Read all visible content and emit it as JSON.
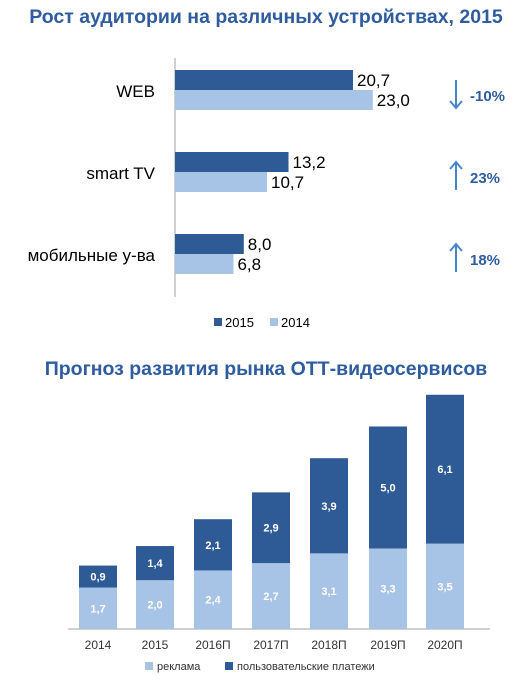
{
  "chart_data": [
    {
      "type": "bar",
      "orientation": "horizontal",
      "title": "Рост аудитории на различных устройствах, 2015",
      "categories": [
        "WEB",
        "smart TV",
        "мобильные у-ва"
      ],
      "series": [
        {
          "name": "2015",
          "values": [
            20.7,
            13.2,
            8.0
          ],
          "labels": [
            "20,7",
            "13,2",
            "8,0"
          ]
        },
        {
          "name": "2014",
          "values": [
            23.0,
            10.7,
            6.8
          ],
          "labels": [
            "23,0",
            "10,7",
            "6,8"
          ]
        }
      ],
      "changes": [
        {
          "text": "-10%",
          "direction": "down"
        },
        {
          "text": "23%",
          "direction": "up"
        },
        {
          "text": "18%",
          "direction": "up"
        }
      ],
      "xlim": [
        0,
        30
      ],
      "grid": false,
      "legend": "bottom"
    },
    {
      "type": "bar",
      "stacked": true,
      "title": "Прогноз развития рынка ОТТ-видеосервисов",
      "categories": [
        "2014",
        "2015",
        "2016П",
        "2017П",
        "2018П",
        "2019П",
        "2020П"
      ],
      "series": [
        {
          "name": "реклама",
          "values": [
            1.7,
            2.0,
            2.4,
            2.7,
            3.1,
            3.3,
            3.5
          ],
          "labels": [
            "1,7",
            "2,0",
            "2,4",
            "2,7",
            "3,1",
            "3,3",
            "3,5"
          ]
        },
        {
          "name": "пользовательские платежи",
          "values": [
            0.9,
            1.4,
            2.1,
            2.9,
            3.9,
            5.0,
            6.1
          ],
          "labels": [
            "0,9",
            "1,4",
            "2,1",
            "2,9",
            "3,9",
            "5,0",
            "6,1"
          ]
        }
      ],
      "ylim": [
        0,
        10
      ],
      "grid": false,
      "legend": "bottom"
    }
  ],
  "colors": {
    "dark": "#2e5b95",
    "light": "#a7c3e5",
    "accent": "#2e5c9e",
    "arrow": "#4a84c8",
    "text": "#000000",
    "axis": "#a0a0a0"
  }
}
